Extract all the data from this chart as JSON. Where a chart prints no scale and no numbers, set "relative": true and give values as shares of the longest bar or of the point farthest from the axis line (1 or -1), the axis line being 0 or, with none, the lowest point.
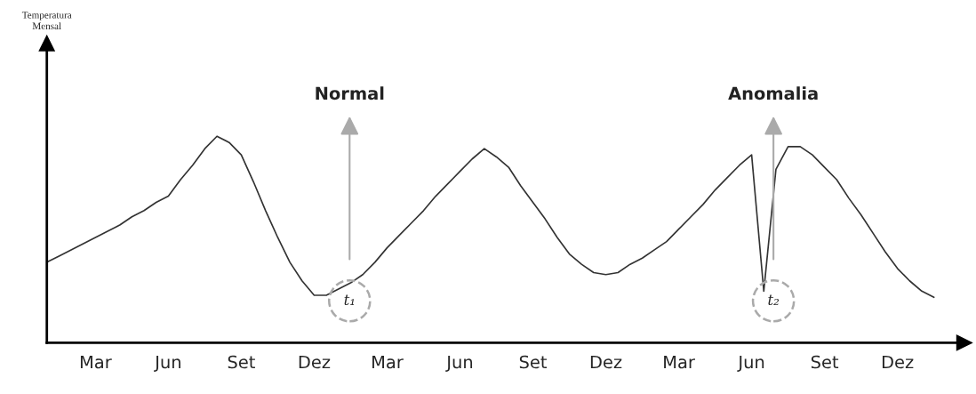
{
  "chart_data": {
    "type": "line",
    "relative": true,
    "categories": [
      null,
      null,
      null,
      null,
      "Mar",
      null,
      null,
      null,
      null,
      null,
      "Jun",
      null,
      null,
      null,
      null,
      null,
      "Set",
      null,
      null,
      null,
      null,
      null,
      "Dez",
      null,
      null,
      null,
      null,
      null,
      "Mar",
      null,
      null,
      null,
      null,
      null,
      "Jun",
      null,
      null,
      null,
      null,
      null,
      "Set",
      null,
      null,
      null,
      null,
      null,
      "Dez",
      null,
      null,
      null,
      null,
      null,
      "Mar",
      null,
      null,
      null,
      null,
      null,
      "Jun",
      null,
      null,
      null,
      null,
      null,
      "Set",
      null,
      null,
      null,
      null,
      null,
      "Dez",
      null,
      null,
      null
    ],
    "series": [
      {
        "color": "#333333",
        "values": [
          0.39,
          0.42,
          0.45,
          0.48,
          0.51,
          0.54,
          0.57,
          0.61,
          0.64,
          0.68,
          0.71,
          0.79,
          0.86,
          0.94,
          1.0,
          0.97,
          0.91,
          0.78,
          0.64,
          0.51,
          0.39,
          0.3,
          0.23,
          0.23,
          0.26,
          0.29,
          0.33,
          0.39,
          0.46,
          0.52,
          0.58,
          0.64,
          0.71,
          0.77,
          0.83,
          0.89,
          0.94,
          0.9,
          0.85,
          0.76,
          0.68,
          0.6,
          0.51,
          0.43,
          0.38,
          0.34,
          0.33,
          0.34,
          0.38,
          0.41,
          0.45,
          0.49,
          0.55,
          0.61,
          0.67,
          0.74,
          0.8,
          0.86,
          0.91,
          0.25,
          0.84,
          0.95,
          0.95,
          0.91,
          0.85,
          0.79,
          0.7,
          0.62,
          0.53,
          0.44,
          0.36,
          0.3,
          0.25,
          0.22
        ]
      }
    ],
    "annotations": [
      "Temperatura\nMensal",
      "Normal",
      "t₁",
      "Anomalia",
      "t₂"
    ]
  }
}
